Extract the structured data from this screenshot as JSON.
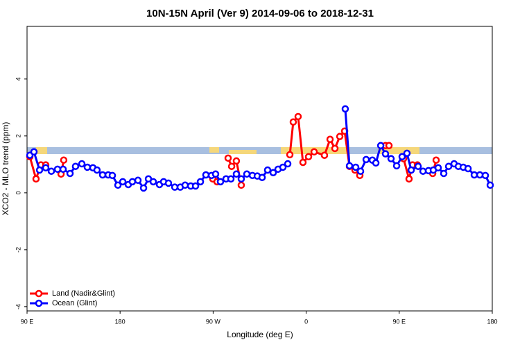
{
  "chart_data": {
    "type": "line",
    "title": "10N-15N April (Ver 9)   2014-09-06 to 2018-12-31",
    "x_label": "Longitude (deg E)",
    "y_label": "XCO2 - MLO trend (ppm)",
    "xlim": [
      90,
      540
    ],
    "ylim": [
      -4.15,
      5.85
    ],
    "xticks": [
      {
        "value": 90,
        "label": "90 E"
      },
      180,
      {
        "value": 270,
        "label": "90 W"
      },
      {
        "value": 360,
        "label": "0"
      },
      {
        "value": 450,
        "label": "90 E"
      },
      {
        "value": 540,
        "label": "180"
      }
    ],
    "yticks": [
      -4,
      -2,
      0,
      2,
      4
    ],
    "legend": "bottomleft",
    "series": [
      {
        "name": "Land (Nadir&Glint)",
        "color": "#ff0000",
        "x": [
          92.7,
          98.7,
          103.4,
          108.1,
          null,
          122.9,
          125.5,
          null,
          269.7,
          273.8,
          null,
          284.5,
          287.9,
          292.5,
          297.2,
          null,
          344.2,
          347.5,
          352.2,
          356.9,
          362.3,
          367.7,
          377.7,
          383.1,
          387.8,
          392.5,
          397.2,
          401.9,
          407.2,
          411.9,
          null,
          436.7,
          440.1,
          null,
          454.2,
          459.5,
          462.9,
          467.6,
          null,
          482.4,
          485.7
        ],
        "values": [
          1.27,
          0.49,
          0.98,
          0.98,
          null,
          0.66,
          1.15,
          null,
          0.49,
          0.39,
          null,
          1.22,
          0.93,
          1.12,
          0.27,
          null,
          1.34,
          2.49,
          2.68,
          1.07,
          1.27,
          1.44,
          1.32,
          1.88,
          1.56,
          1.98,
          2.17,
          0.93,
          0.8,
          0.61,
          null,
          1.66,
          1.66,
          null,
          1.2,
          0.49,
          0.98,
          0.98,
          null,
          0.68,
          1.15
        ]
      },
      {
        "name": "Ocean (Glint)",
        "color": "#0000ff",
        "x": [
          92.7,
          96.7,
          102.1,
          108.1,
          113.5,
          119.5,
          124.9,
          131.6,
          136.9,
          143.0,
          148.3,
          153.7,
          157.7,
          163.1,
          168.5,
          172.5,
          177.9,
          182.6,
          187.9,
          191.9,
          197.3,
          202.7,
          207.4,
          212.1,
          218.1,
          222.1,
          226.8,
          232.9,
          238.2,
          242.9,
          248.3,
          253.0,
          257.7,
          263.0,
          268.4,
          272.4,
          277.1,
          282.5,
          287.2,
          292.5,
          297.2,
          302.6,
          308.0,
          312.7,
          317.4,
          322.7,
          328.1,
          332.8,
          337.5,
          342.2,
          null,
          397.8,
          401.9,
          407.9,
          412.6,
          418.0,
          424.0,
          427.4,
          432.1,
          436.7,
          442.1,
          447.5,
          452.8,
          457.5,
          461.6,
          468.3,
          473.0,
          478.3,
          483.0,
          487.7,
          493.1,
          497.8,
          503.1,
          507.2,
          511.9,
          516.6,
          522.6,
          528.0,
          533.3,
          538.0
        ],
        "values": [
          1.32,
          1.44,
          0.8,
          0.88,
          0.76,
          0.83,
          0.83,
          0.68,
          0.93,
          1.02,
          0.9,
          0.88,
          0.8,
          0.63,
          0.63,
          0.61,
          0.27,
          0.39,
          0.29,
          0.39,
          0.44,
          0.17,
          0.49,
          0.39,
          0.29,
          0.39,
          0.34,
          0.2,
          0.2,
          0.27,
          0.24,
          0.24,
          0.39,
          0.63,
          0.61,
          0.66,
          0.39,
          0.49,
          0.49,
          0.66,
          0.49,
          0.66,
          0.61,
          0.59,
          0.54,
          0.8,
          0.71,
          0.83,
          0.9,
          1.02,
          null,
          2.95,
          0.95,
          0.9,
          0.76,
          1.17,
          1.15,
          1.05,
          1.66,
          1.37,
          1.2,
          0.95,
          1.27,
          1.39,
          0.8,
          0.93,
          0.76,
          0.78,
          0.8,
          0.88,
          0.68,
          0.93,
          1.02,
          0.93,
          0.9,
          0.85,
          0.63,
          0.63,
          0.61,
          0.27
        ]
      }
    ]
  }
}
